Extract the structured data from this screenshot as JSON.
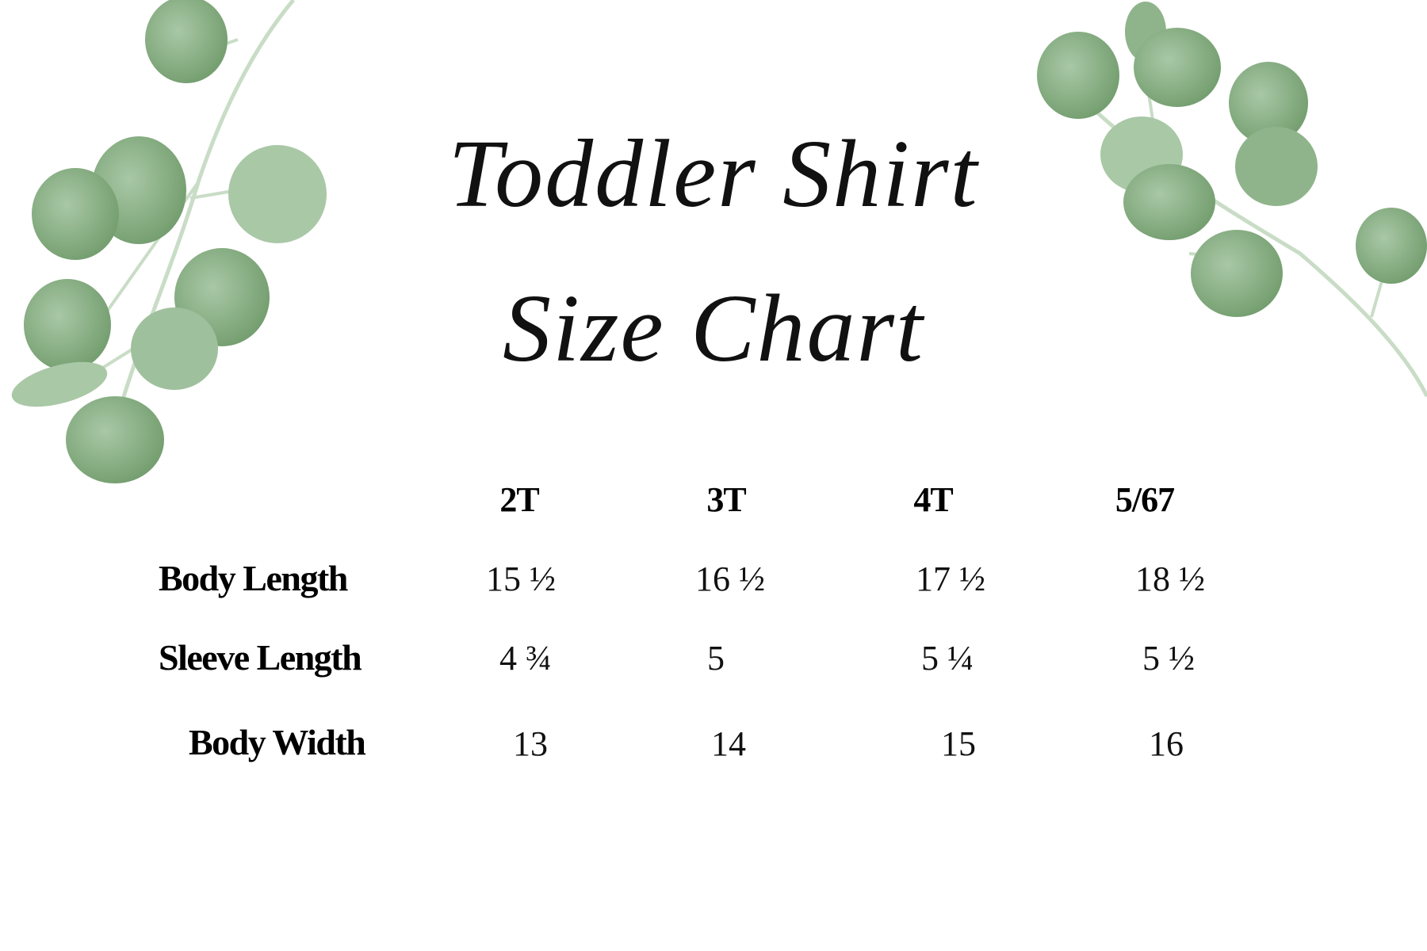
{
  "title": {
    "line1": "Toddler Shirt",
    "line2": "Size Chart"
  },
  "colors": {
    "leaf_dark": "#6f9a6a",
    "leaf_light": "#a9c8a6",
    "stem": "#c9ddc6"
  },
  "table": {
    "columns": [
      "2T",
      "3T",
      "4T",
      "5/67"
    ],
    "rows": [
      {
        "label": "Body Length",
        "values": [
          "15 ½",
          "16 ½",
          "17 ½",
          "18 ½"
        ]
      },
      {
        "label": "Sleeve Length",
        "values": [
          "4 ¾",
          "5",
          "5 ¼",
          "5 ½"
        ]
      },
      {
        "label": "Body Width",
        "values": [
          "13",
          "14",
          "15",
          "16"
        ]
      }
    ]
  }
}
